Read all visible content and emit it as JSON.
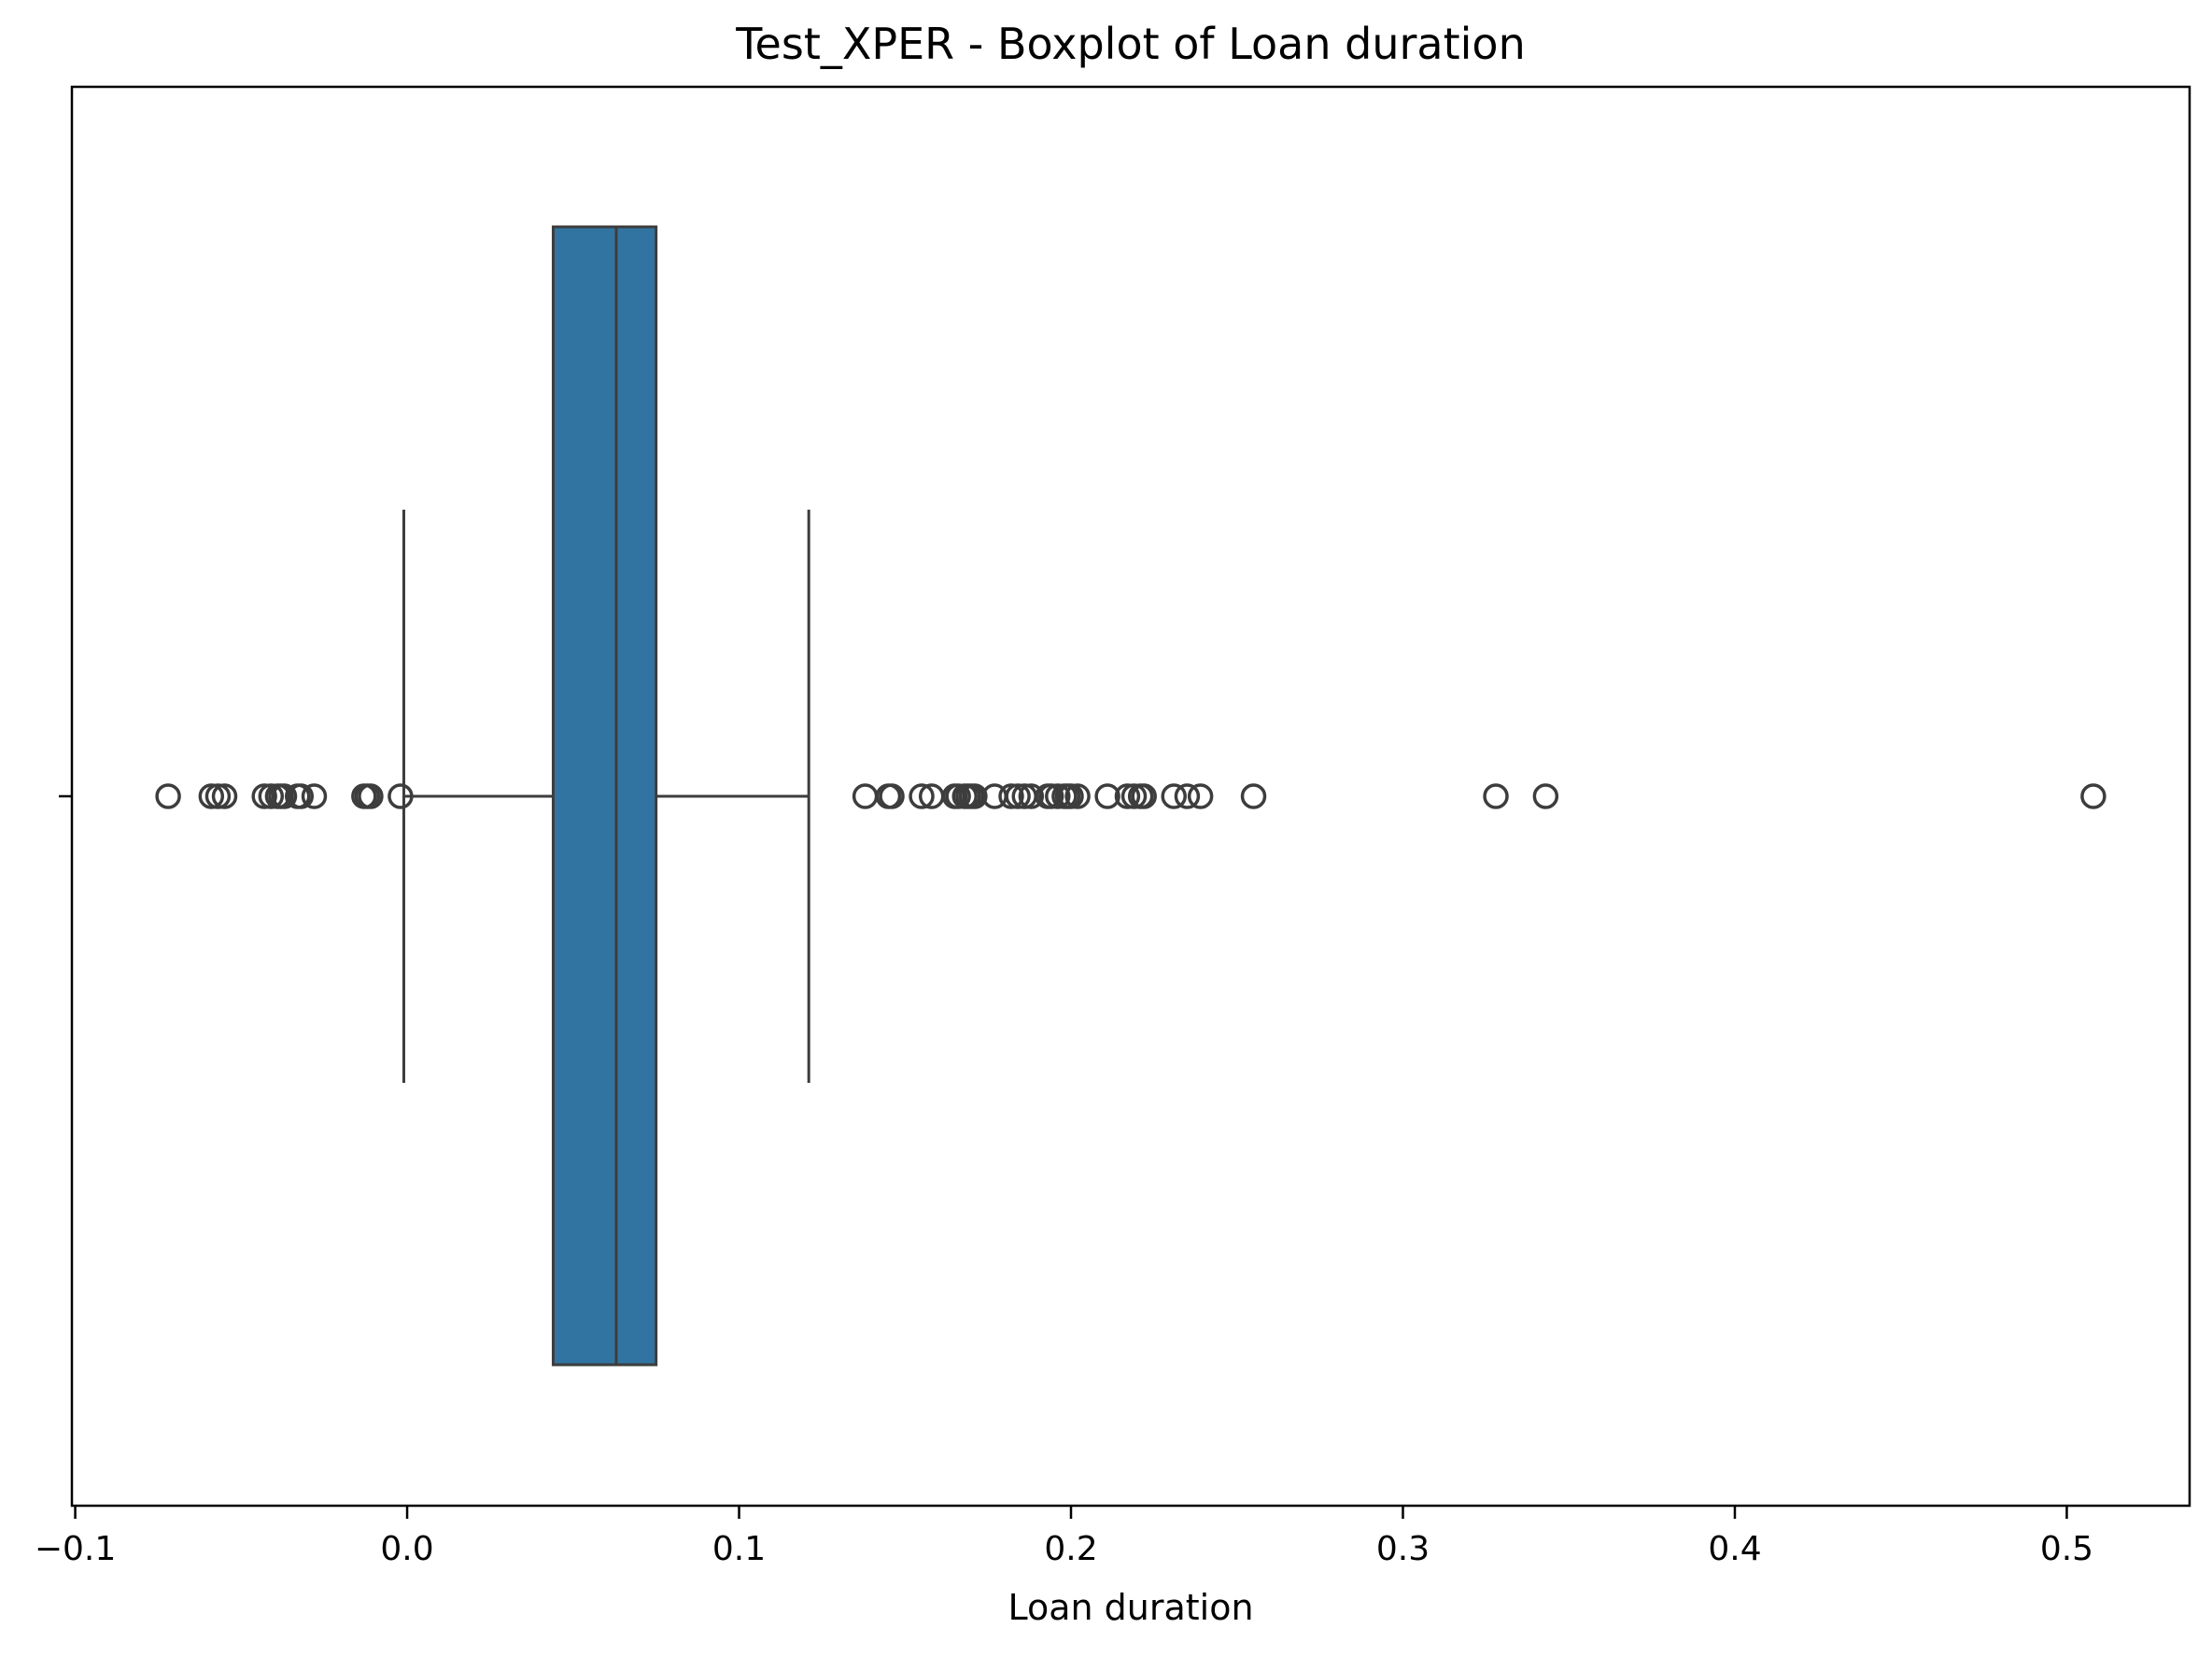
{
  "chart_data": {
    "type": "box",
    "orientation": "horizontal",
    "title": "Test_XPER - Boxplot of Loan duration",
    "xlabel": "Loan duration",
    "ylabel": "",
    "xlim": [
      -0.101,
      0.537
    ],
    "xticks": [
      -0.1,
      0.0,
      0.1,
      0.2,
      0.3,
      0.4,
      0.5
    ],
    "xtick_labels": [
      "−0.1",
      "0.0",
      "0.1",
      "0.2",
      "0.3",
      "0.4",
      "0.5"
    ],
    "grid": false,
    "legend": "none",
    "box": {
      "whisker_low": -0.001,
      "q1": 0.044,
      "median": 0.063,
      "q3": 0.075,
      "whisker_high": 0.121,
      "fill": "#3274a1",
      "line_color": "#3d3d3d"
    },
    "outliers": [
      -0.072,
      -0.059,
      -0.057,
      -0.055,
      -0.043,
      -0.041,
      -0.039,
      -0.038,
      -0.037,
      -0.033,
      -0.032,
      -0.028,
      -0.013,
      -0.012,
      -0.011,
      -0.002,
      0.138,
      0.145,
      0.146,
      0.155,
      0.158,
      0.165,
      0.166,
      0.168,
      0.169,
      0.17,
      0.171,
      0.177,
      0.182,
      0.184,
      0.186,
      0.188,
      0.193,
      0.194,
      0.196,
      0.198,
      0.199,
      0.2,
      0.202,
      0.211,
      0.217,
      0.219,
      0.221,
      0.222,
      0.231,
      0.235,
      0.239,
      0.255,
      0.328,
      0.343,
      0.508
    ]
  }
}
